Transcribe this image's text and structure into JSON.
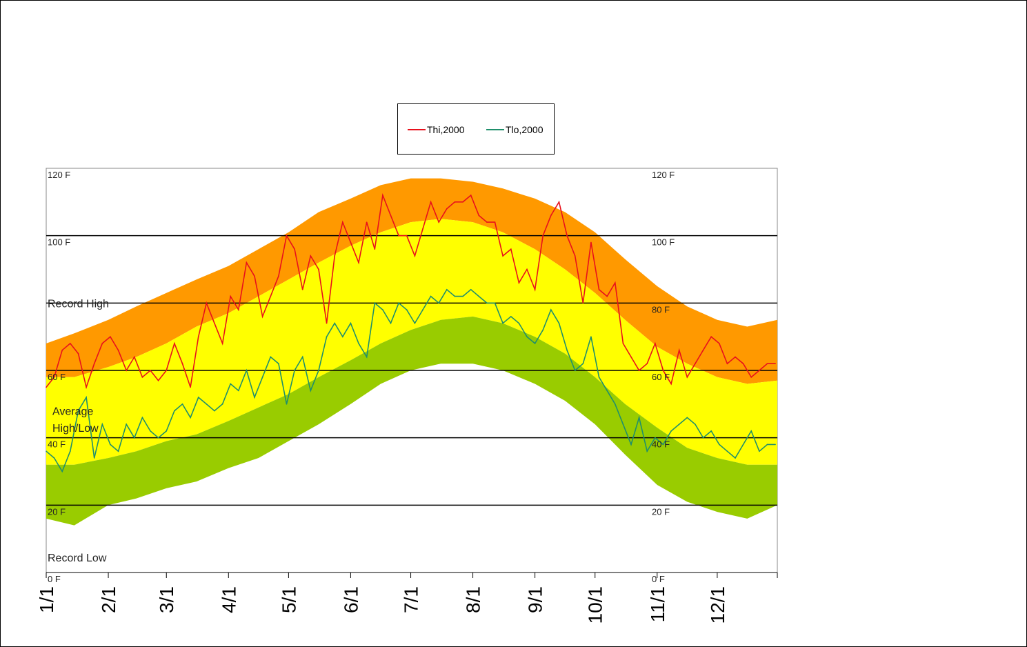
{
  "legend": {
    "items": [
      {
        "label": "Thi,2000",
        "color": "#e8101c"
      },
      {
        "label": "Tlo,2000",
        "color": "#1f8f6b"
      }
    ]
  },
  "chart_data": {
    "type": "area",
    "ylim": [
      0,
      120
    ],
    "y_ticks_left": [
      {
        "value": 120,
        "label": "120 F"
      },
      {
        "value": 100,
        "label": "100 F"
      },
      {
        "value": 60,
        "label": "60 F"
      },
      {
        "value": 40,
        "label": "40 F"
      },
      {
        "value": 20,
        "label": "20 F"
      },
      {
        "value": 0,
        "label": "0 F"
      }
    ],
    "y_ticks_right": [
      {
        "value": 120,
        "label": "120 F"
      },
      {
        "value": 100,
        "label": "100 F"
      },
      {
        "value": 80,
        "label": "80 F"
      },
      {
        "value": 60,
        "label": "60 F"
      },
      {
        "value": 40,
        "label": "40 F"
      },
      {
        "value": 20,
        "label": "20 F"
      },
      {
        "value": 0,
        "label": "0 F"
      }
    ],
    "gridlines": [
      20,
      40,
      60,
      80,
      100
    ],
    "x_ticks": [
      {
        "day": 1,
        "label": "1/1"
      },
      {
        "day": 32,
        "label": "2/1"
      },
      {
        "day": 61,
        "label": "3/1"
      },
      {
        "day": 92,
        "label": "4/1"
      },
      {
        "day": 122,
        "label": "5/1"
      },
      {
        "day": 153,
        "label": "6/1"
      },
      {
        "day": 183,
        "label": "7/1"
      },
      {
        "day": 214,
        "label": "8/1"
      },
      {
        "day": 245,
        "label": "9/1"
      },
      {
        "day": 275,
        "label": "10/1"
      },
      {
        "day": 306,
        "label": "11/1"
      },
      {
        "day": 336,
        "label": "12/1"
      }
    ],
    "band_annotations": [
      {
        "label": "Record High",
        "y": 80
      },
      {
        "label": "Average",
        "y": 48
      },
      {
        "label": "High/Low",
        "y": 43
      },
      {
        "label": "Record Low",
        "y": 4.5
      }
    ],
    "colors": {
      "record_high": "#ff9900",
      "average": "#ffff00",
      "record_low": "#99cc00",
      "thi": "#e8101c",
      "tlo": "#1f8f6b"
    },
    "bands": {
      "x": [
        1,
        15,
        32,
        46,
        61,
        76,
        92,
        107,
        122,
        137,
        153,
        168,
        183,
        198,
        214,
        229,
        245,
        260,
        275,
        290,
        306,
        321,
        336,
        351,
        366
      ],
      "record_high": [
        68,
        71,
        75,
        79,
        83,
        87,
        91,
        96,
        101,
        107,
        111,
        115,
        117,
        117,
        116,
        114,
        111,
        107,
        101,
        93,
        85,
        79,
        75,
        73,
        75
      ],
      "avg_high": [
        58,
        58,
        61,
        64,
        68,
        73,
        77,
        82,
        87,
        92,
        97,
        101,
        104,
        105,
        104,
        101,
        96,
        90,
        83,
        75,
        67,
        62,
        58,
        56,
        57
      ],
      "avg_low": [
        32,
        32,
        34,
        36,
        39,
        41,
        45,
        49,
        53,
        58,
        63,
        68,
        72,
        75,
        76,
        74,
        70,
        65,
        58,
        50,
        43,
        37,
        34,
        32,
        32
      ],
      "record_low": [
        16,
        14,
        20,
        22,
        25,
        27,
        31,
        34,
        39,
        44,
        50,
        56,
        60,
        62,
        62,
        60,
        56,
        51,
        44,
        35,
        26,
        21,
        18,
        16,
        20
      ]
    },
    "series": [
      {
        "name": "Thi,2000",
        "x": [
          1,
          5,
          9,
          13,
          17,
          21,
          25,
          29,
          33,
          37,
          41,
          45,
          49,
          53,
          57,
          61,
          65,
          69,
          73,
          77,
          81,
          85,
          89,
          93,
          97,
          101,
          105,
          109,
          113,
          117,
          121,
          125,
          129,
          133,
          137,
          141,
          145,
          149,
          153,
          157,
          161,
          165,
          169,
          173,
          177,
          181,
          185,
          189,
          193,
          197,
          201,
          205,
          209,
          213,
          217,
          221,
          225,
          229,
          233,
          237,
          241,
          245,
          249,
          253,
          257,
          261,
          265,
          269,
          273,
          277,
          281,
          285,
          289,
          293,
          297,
          301,
          305,
          309,
          313,
          317,
          321,
          325,
          329,
          333,
          337,
          341,
          345,
          349,
          353,
          357,
          361,
          365
        ],
        "values": [
          55,
          58,
          66,
          68,
          65,
          55,
          62,
          68,
          70,
          66,
          60,
          64,
          58,
          60,
          57,
          60,
          68,
          62,
          55,
          70,
          80,
          74,
          68,
          82,
          78,
          92,
          88,
          76,
          82,
          88,
          100,
          96,
          84,
          94,
          90,
          74,
          94,
          104,
          98,
          92,
          104,
          96,
          112,
          106,
          100,
          100,
          94,
          102,
          110,
          104,
          108,
          110,
          110,
          112,
          106,
          104,
          104,
          94,
          96,
          86,
          90,
          84,
          100,
          106,
          110,
          100,
          94,
          80,
          98,
          84,
          82,
          86,
          68,
          64,
          60,
          62,
          68,
          60,
          56,
          66,
          58,
          62,
          66,
          70,
          68,
          62,
          64,
          62,
          58,
          60,
          62,
          62
        ]
      },
      {
        "name": "Tlo,2000",
        "x": [
          1,
          5,
          9,
          13,
          17,
          21,
          25,
          29,
          33,
          37,
          41,
          45,
          49,
          53,
          57,
          61,
          65,
          69,
          73,
          77,
          81,
          85,
          89,
          93,
          97,
          101,
          105,
          109,
          113,
          117,
          121,
          125,
          129,
          133,
          137,
          141,
          145,
          149,
          153,
          157,
          161,
          165,
          169,
          173,
          177,
          181,
          185,
          189,
          193,
          197,
          201,
          205,
          209,
          213,
          217,
          221,
          225,
          229,
          233,
          237,
          241,
          245,
          249,
          253,
          257,
          261,
          265,
          269,
          273,
          277,
          281,
          285,
          289,
          293,
          297,
          301,
          305,
          309,
          313,
          317,
          321,
          325,
          329,
          333,
          337,
          341,
          345,
          349,
          353,
          357,
          361,
          365
        ],
        "values": [
          36,
          34,
          30,
          36,
          48,
          52,
          34,
          44,
          38,
          36,
          44,
          40,
          46,
          42,
          40,
          42,
          48,
          50,
          46,
          52,
          50,
          48,
          50,
          56,
          54,
          60,
          52,
          58,
          64,
          62,
          50,
          60,
          64,
          54,
          60,
          70,
          74,
          70,
          74,
          68,
          64,
          80,
          78,
          74,
          80,
          78,
          74,
          78,
          82,
          80,
          84,
          82,
          82,
          84,
          82,
          80,
          80,
          74,
          76,
          74,
          70,
          68,
          72,
          78,
          74,
          66,
          60,
          62,
          70,
          58,
          54,
          50,
          44,
          38,
          46,
          36,
          40,
          38,
          42,
          44,
          46,
          44,
          40,
          42,
          38,
          36,
          34,
          38,
          42,
          36,
          38,
          38
        ]
      }
    ]
  }
}
